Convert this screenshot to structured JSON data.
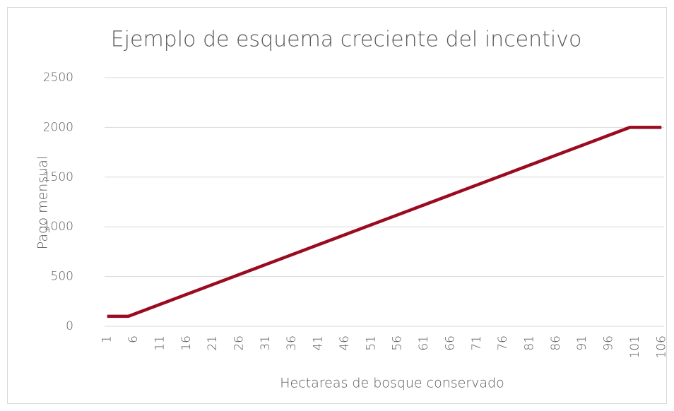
{
  "chart_data": {
    "type": "line",
    "title": "Ejemplo de esquema creciente del incentivo",
    "xlabel": "Hectareas de bosque conservado",
    "ylabel": "Pago mensual",
    "categories": [
      "1",
      null,
      null,
      null,
      null,
      "6",
      null,
      null,
      null,
      null,
      "11",
      null,
      null,
      null,
      null,
      "16",
      null,
      null,
      null,
      null,
      "21",
      null,
      null,
      null,
      null,
      "26",
      null,
      null,
      null,
      null,
      "31",
      null,
      null,
      null,
      null,
      "36",
      null,
      null,
      null,
      null,
      "41",
      null,
      null,
      null,
      null,
      "46",
      null,
      null,
      null,
      null,
      "51",
      null,
      null,
      null,
      null,
      "56",
      null,
      null,
      null,
      null,
      "61",
      null,
      null,
      null,
      null,
      "66",
      null,
      null,
      null,
      null,
      "71",
      null,
      null,
      null,
      null,
      "76",
      null,
      null,
      null,
      null,
      "81",
      null,
      null,
      null,
      null,
      "86",
      null,
      null,
      null,
      null,
      "91",
      null,
      null,
      null,
      null,
      "96",
      null,
      null,
      null,
      null,
      "101",
      null,
      null,
      null,
      null,
      "106"
    ],
    "values": [
      100,
      100,
      100,
      100,
      100,
      120,
      140,
      160,
      180,
      200,
      220,
      240,
      260,
      280,
      300,
      320,
      340,
      360,
      380,
      400,
      420,
      440,
      460,
      480,
      500,
      520,
      540,
      560,
      580,
      600,
      620,
      640,
      660,
      680,
      700,
      720,
      740,
      760,
      780,
      800,
      820,
      840,
      860,
      880,
      900,
      920,
      940,
      960,
      980,
      1000,
      1020,
      1040,
      1060,
      1080,
      1100,
      1120,
      1140,
      1160,
      1180,
      1200,
      1220,
      1240,
      1260,
      1280,
      1300,
      1320,
      1340,
      1360,
      1380,
      1400,
      1420,
      1440,
      1460,
      1480,
      1500,
      1520,
      1540,
      1560,
      1580,
      1600,
      1620,
      1640,
      1660,
      1680,
      1700,
      1720,
      1740,
      1760,
      1780,
      1800,
      1820,
      1840,
      1860,
      1880,
      1900,
      1920,
      1940,
      1960,
      1980,
      2000,
      2000,
      2000,
      2000,
      2000,
      2000,
      2000
    ],
    "color": "#9a0b20",
    "ylim": [
      0,
      2500
    ],
    "yticks": [
      0,
      500,
      1000,
      1500,
      2000,
      2500
    ],
    "grid": true
  }
}
